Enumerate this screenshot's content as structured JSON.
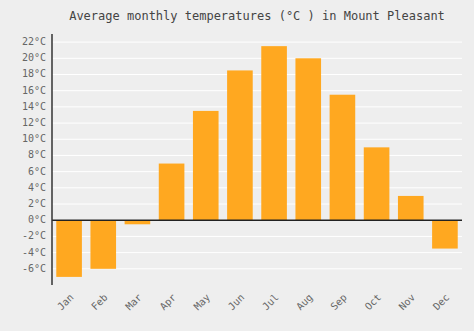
{
  "chart_data": {
    "type": "bar",
    "title": "Average monthly temperatures (°C ) in Mount Pleasant",
    "categories": [
      "Jan",
      "Feb",
      "Mar",
      "Apr",
      "May",
      "Jun",
      "Jul",
      "Aug",
      "Sep",
      "Oct",
      "Nov",
      "Dec"
    ],
    "values": [
      -7.0,
      -6.0,
      -0.5,
      7.0,
      13.5,
      18.5,
      21.5,
      20.0,
      15.5,
      9.0,
      3.0,
      -3.5
    ],
    "color": "#FFA820",
    "ylim": [
      -8,
      23
    ],
    "yticks": [
      {
        "value": -6,
        "label": "-6°C"
      },
      {
        "value": -4,
        "label": "-4°C"
      },
      {
        "value": -2,
        "label": "-2°C"
      },
      {
        "value": 0,
        "label": "0°C"
      },
      {
        "value": 2,
        "label": "2°C"
      },
      {
        "value": 4,
        "label": "4°C"
      },
      {
        "value": 6,
        "label": "6°C"
      },
      {
        "value": 8,
        "label": "8°C"
      },
      {
        "value": 10,
        "label": "10°C"
      },
      {
        "value": 12,
        "label": "12°C"
      },
      {
        "value": 14,
        "label": "14°C"
      },
      {
        "value": 16,
        "label": "16°C"
      },
      {
        "value": 18,
        "label": "18°C"
      },
      {
        "value": 20,
        "label": "20°C"
      },
      {
        "value": 22,
        "label": "22°C"
      }
    ],
    "grid": true
  }
}
